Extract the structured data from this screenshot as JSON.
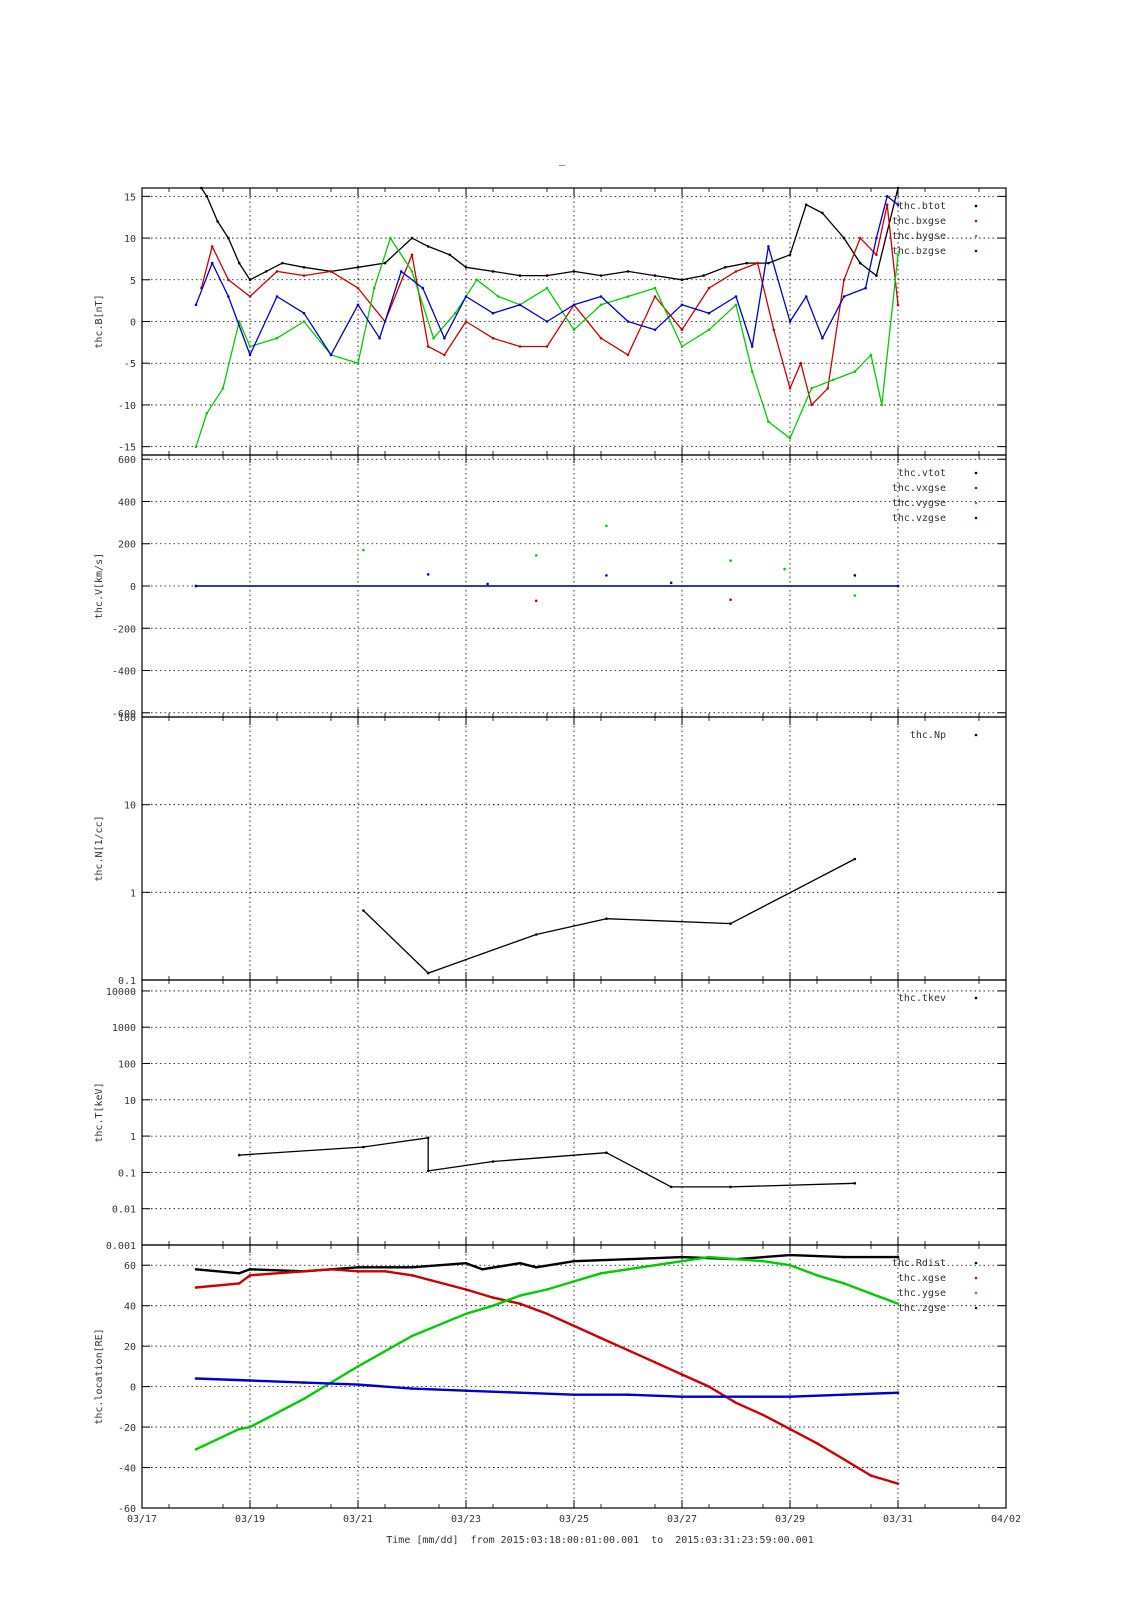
{
  "page": {
    "top_mark": "–",
    "x_axis_title": "Time [mm/dd]  from 2015:03:18:00:01:00.001  to  2015:03:31:23:59:00.001"
  },
  "chart_data": [
    {
      "type": "scatter",
      "ylabel": "thc.B[nT]",
      "ylim": [
        -16,
        16
      ],
      "yscale": "linear",
      "yticks": [
        -15,
        -10,
        -5,
        0,
        5,
        10,
        15
      ],
      "ytick_labels": [
        "-15",
        "-10",
        "-5",
        "0",
        "5",
        "10",
        "15"
      ],
      "grid": true,
      "legend_position": "top-right",
      "series": [
        {
          "name": "thc.btot",
          "color": "#000000",
          "x": [
            1.1,
            1.2,
            1.4,
            1.6,
            1.8,
            2.0,
            2.3,
            2.6,
            3.0,
            3.5,
            4.0,
            4.5,
            5.0,
            5.3,
            5.7,
            6.0,
            6.5,
            7.0,
            7.5,
            8.0,
            8.5,
            9.0,
            9.5,
            10.0,
            10.4,
            10.8,
            11.2,
            11.6,
            12.0,
            12.3,
            12.6,
            13.0,
            13.3,
            13.6,
            14.0
          ],
          "y": [
            16,
            15,
            12,
            10,
            7,
            5,
            6,
            7,
            6.5,
            6,
            6.5,
            7,
            10,
            9,
            8,
            6.5,
            6,
            5.5,
            5.5,
            6,
            5.5,
            6,
            5.5,
            5,
            5.5,
            6.5,
            7,
            7,
            8,
            14,
            13,
            10,
            7,
            5.5,
            16
          ]
        },
        {
          "name": "thc.bxgse",
          "color": "#cc0000",
          "x": [
            1.1,
            1.3,
            1.6,
            2.0,
            2.5,
            3.0,
            3.5,
            4.0,
            4.5,
            5.0,
            5.3,
            5.6,
            6.0,
            6.5,
            7.0,
            7.5,
            8.0,
            8.5,
            9.0,
            9.5,
            10.0,
            10.5,
            11.0,
            11.4,
            11.7,
            12.0,
            12.2,
            12.4,
            12.7,
            13.0,
            13.3,
            13.6,
            13.8,
            14.0
          ],
          "y": [
            4,
            9,
            5,
            3,
            6,
            5.5,
            6,
            4,
            0,
            8,
            -3,
            -4,
            0,
            -2,
            -3,
            -3,
            2,
            -2,
            -4,
            3,
            -1,
            4,
            6,
            7,
            -1,
            -8,
            -5,
            -10,
            -8,
            5,
            10,
            8,
            14,
            2
          ]
        },
        {
          "name": "thc.bygse",
          "color": "#00cc00",
          "x": [
            1.0,
            1.2,
            1.5,
            1.8,
            2.0,
            2.5,
            3.0,
            3.5,
            4.0,
            4.3,
            4.6,
            5.0,
            5.4,
            5.8,
            6.2,
            6.6,
            7.0,
            7.5,
            8.0,
            8.5,
            9.0,
            9.5,
            10.0,
            10.5,
            11.0,
            11.3,
            11.6,
            12.0,
            12.4,
            12.8,
            13.2,
            13.5,
            13.7,
            14.0
          ],
          "y": [
            -15,
            -11,
            -8,
            0,
            -3,
            -2,
            0,
            -4,
            -5,
            4,
            10,
            6,
            -2,
            1,
            5,
            3,
            2,
            4,
            -1,
            2,
            3,
            4,
            -3,
            -1,
            2,
            -6,
            -12,
            -14,
            -8,
            -7,
            -6,
            -4,
            -10,
            8
          ]
        },
        {
          "name": "thc.bzgse",
          "color": "#0000cc",
          "x": [
            1.0,
            1.3,
            1.6,
            2.0,
            2.5,
            3.0,
            3.5,
            4.0,
            4.4,
            4.8,
            5.2,
            5.6,
            6.0,
            6.5,
            7.0,
            7.5,
            8.0,
            8.5,
            9.0,
            9.5,
            10.0,
            10.5,
            11.0,
            11.3,
            11.6,
            12.0,
            12.3,
            12.6,
            13.0,
            13.4,
            13.6,
            13.8,
            14.0
          ],
          "y": [
            2,
            7,
            3,
            -4,
            3,
            1,
            -4,
            2,
            -2,
            6,
            4,
            -2,
            3,
            1,
            2,
            0,
            2,
            3,
            0,
            -1,
            2,
            1,
            3,
            -3,
            9,
            0,
            3,
            -2,
            3,
            4,
            10,
            15,
            14
          ]
        }
      ]
    },
    {
      "type": "scatter",
      "ylabel": "thc.V[km/s]",
      "ylim": [
        -620,
        620
      ],
      "yscale": "linear",
      "yticks": [
        -600,
        -400,
        -200,
        0,
        200,
        400,
        600
      ],
      "ytick_labels": [
        "-600",
        "-400",
        "-200",
        "0",
        "200",
        "400",
        "600"
      ],
      "grid": true,
      "legend_position": "top-right",
      "series": [
        {
          "name": "thc.vtot",
          "color": "#000000",
          "x": [
            1.0,
            14.0
          ],
          "y": [
            0,
            0
          ]
        },
        {
          "name": "thc.vxgse",
          "color": "#cc0000",
          "x": [
            1.0,
            14.0
          ],
          "y": [
            0,
            0
          ]
        },
        {
          "name": "thc.vygse",
          "color": "#00cc00",
          "x": [
            1.0,
            14.0
          ],
          "y": [
            0,
            0
          ]
        },
        {
          "name": "thc.vzgse",
          "color": "#0000cc",
          "x": [
            1.0,
            14.0
          ],
          "y": [
            0,
            0
          ]
        }
      ],
      "scattered_points": [
        {
          "x": 4.1,
          "y": 170,
          "color": "#00cc00"
        },
        {
          "x": 5.3,
          "y": 55,
          "color": "#0000cc"
        },
        {
          "x": 6.4,
          "y": 10,
          "color": "#0000cc"
        },
        {
          "x": 7.3,
          "y": 145,
          "color": "#00cc00"
        },
        {
          "x": 7.3,
          "y": -70,
          "color": "#cc0000"
        },
        {
          "x": 8.6,
          "y": 285,
          "color": "#00cc00"
        },
        {
          "x": 8.6,
          "y": 50,
          "color": "#0000cc"
        },
        {
          "x": 9.8,
          "y": 15,
          "color": "#0000cc"
        },
        {
          "x": 10.9,
          "y": 120,
          "color": "#00cc00"
        },
        {
          "x": 10.9,
          "y": -65,
          "color": "#cc0000"
        },
        {
          "x": 11.9,
          "y": 80,
          "color": "#00cc00"
        },
        {
          "x": 13.2,
          "y": 50,
          "color": "#000000"
        },
        {
          "x": 13.2,
          "y": -45,
          "color": "#00cc00"
        }
      ]
    },
    {
      "type": "scatter",
      "ylabel": "thc.N[1/cc]",
      "ylim": [
        0.1,
        100
      ],
      "yscale": "log",
      "yticks": [
        0.1,
        1,
        10,
        100
      ],
      "ytick_labels": [
        "0.1",
        "1",
        "10",
        "100"
      ],
      "grid": true,
      "legend_position": "top-right",
      "series": [
        {
          "name": "thc.Np",
          "color": "#000000",
          "x": [
            4.1,
            5.3,
            7.3,
            8.6,
            10.9,
            13.2
          ],
          "y": [
            0.62,
            0.12,
            0.33,
            0.5,
            0.44,
            2.4
          ]
        }
      ]
    },
    {
      "type": "scatter",
      "ylabel": "thc.T[keV]",
      "ylim": [
        0.001,
        20000
      ],
      "yscale": "log",
      "yticks": [
        0.001,
        0.01,
        0.1,
        1,
        10,
        100,
        1000,
        10000
      ],
      "ytick_labels": [
        "0.001",
        "0.01",
        "0.1",
        "1",
        "10",
        "100",
        "1000",
        "10000"
      ],
      "grid": true,
      "legend_position": "top-right",
      "series": [
        {
          "name": "thc.tkev",
          "color": "#000000",
          "x": [
            1.8,
            4.1,
            5.3,
            5.3,
            6.5,
            8.6,
            9.8,
            10.9,
            13.2
          ],
          "y": [
            0.3,
            0.5,
            0.9,
            0.11,
            0.2,
            0.35,
            0.04,
            0.04,
            0.05
          ]
        }
      ]
    },
    {
      "type": "line",
      "ylabel": "thc.location[RE]",
      "ylim": [
        -60,
        70
      ],
      "yscale": "linear",
      "yticks": [
        -60,
        -40,
        -20,
        0,
        20,
        40,
        60
      ],
      "ytick_labels": [
        "-60",
        "-40",
        "-20",
        "0",
        "20",
        "40",
        "60"
      ],
      "grid": true,
      "legend_position": "top-right",
      "series": [
        {
          "name": "thc.Rdist",
          "color": "#000000",
          "x": [
            1.0,
            1.8,
            2.0,
            3.0,
            4.0,
            5.0,
            6.0,
            6.3,
            7.0,
            7.3,
            8.0,
            9.0,
            10.0,
            11.0,
            12.0,
            13.0,
            14.0
          ],
          "y": [
            58,
            56,
            58,
            57,
            59,
            59,
            61,
            58,
            61,
            59,
            62,
            63,
            64,
            63,
            65,
            64,
            64
          ]
        },
        {
          "name": "thc.xgse",
          "color": "#cc0000",
          "x": [
            1.0,
            1.8,
            2.0,
            3.0,
            3.5,
            4.0,
            4.5,
            5.0,
            6.0,
            6.5,
            7.0,
            7.5,
            8.0,
            8.5,
            9.0,
            9.5,
            10.0,
            10.5,
            11.0,
            11.5,
            12.0,
            12.5,
            13.0,
            13.5,
            14.0
          ],
          "y": [
            49,
            51,
            55,
            57,
            58,
            57,
            57,
            55,
            48,
            44,
            41,
            36,
            30,
            24,
            18,
            12,
            6,
            0,
            -8,
            -14,
            -21,
            -28,
            -36,
            -44,
            -48
          ]
        },
        {
          "name": "thc.ygse",
          "color": "#00cc00",
          "x": [
            1.0,
            1.8,
            2.0,
            3.0,
            4.0,
            5.0,
            6.0,
            6.5,
            7.0,
            7.5,
            8.0,
            8.5,
            9.0,
            9.5,
            10.0,
            10.5,
            11.0,
            11.5,
            12.0,
            12.5,
            13.0,
            13.5,
            14.0
          ],
          "y": [
            -31,
            -21,
            -20,
            -6,
            10,
            25,
            36,
            40,
            45,
            48,
            52,
            56,
            58,
            60,
            62,
            64,
            63,
            62,
            60,
            55,
            51,
            46,
            41
          ]
        },
        {
          "name": "thc.zgse",
          "color": "#0000cc",
          "x": [
            1.0,
            2.0,
            3.0,
            4.0,
            5.0,
            6.0,
            7.0,
            8.0,
            9.0,
            10.0,
            11.0,
            12.0,
            13.0,
            14.0
          ],
          "y": [
            4,
            3,
            2,
            1,
            -1,
            -2,
            -3,
            -4,
            -4,
            -5,
            -5,
            -5,
            -4,
            -3
          ]
        }
      ]
    }
  ],
  "x_axis": {
    "xlim": [
      0,
      16
    ],
    "ticks": [
      0,
      2,
      4,
      6,
      8,
      10,
      12,
      14,
      16
    ],
    "tick_labels": [
      "03/17",
      "03/19",
      "03/21",
      "03/23",
      "03/25",
      "03/27",
      "03/29",
      "03/31",
      "04/02"
    ]
  }
}
